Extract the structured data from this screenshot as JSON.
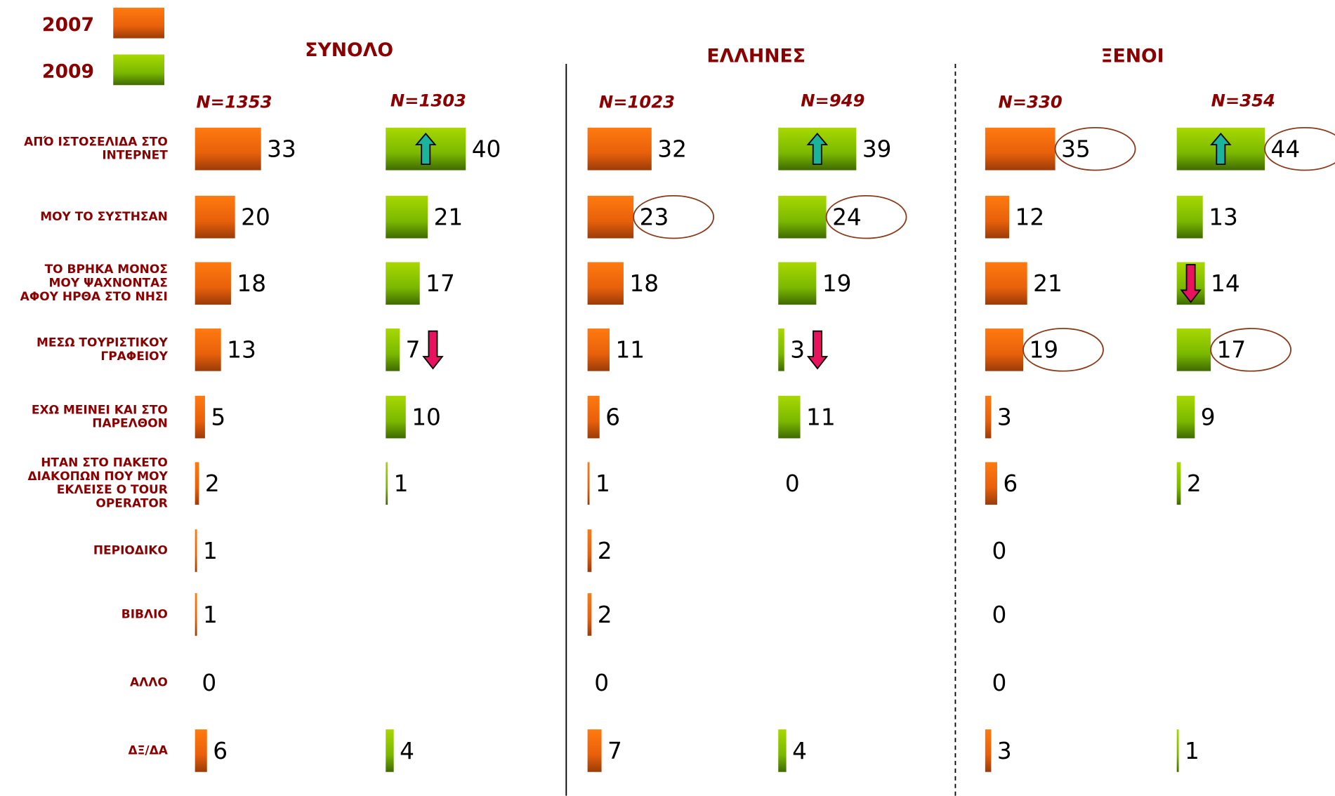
{
  "chart_data": {
    "type": "bar",
    "orientation": "horizontal",
    "legend": [
      {
        "name": "2007",
        "color": "#e8600a"
      },
      {
        "name": "2009",
        "color": "#7ab800"
      }
    ],
    "categories": [
      "ΑΠΌ ΙΣΤΟΣΕΛΙΔΑ ΣΤΟ ΙΝΤΕΡΝΕΤ",
      "ΜΟΥ ΤΟ ΣΥΣΤΗΣΑΝ",
      "ΤΟ ΒΡΗΚΑ ΜΟΝΟΣ ΜΟΥ ΨΑΧΝΟΝΤΑΣ ΑΦΟΥ ΗΡΘΑ ΣΤΟ ΝΗΣΙ",
      "ΜΕΣΩ ΤΟΥΡΙΣΤΙΚΟΥ ΓΡΑΦΕΙΟΥ",
      "ΕΧΩ ΜΕΙΝΕΙ ΚΑΙ ΣΤΟ ΠΑΡΕΛΘΟΝ",
      "ΗΤΑΝ ΣΤΟ ΠΑΚΕΤΟ ΔΙΑΚΟΠΩΝ ΠΟΥ ΜΟΥ ΕΚΛΕΙΣΕ Ο TOUR OPERATOR",
      "ΠΕΡΙΟΔΙΚΟ",
      "ΒΙΒΛΙΟ",
      "ΑΛΛΟ",
      "ΔΞ/ΔΑ"
    ],
    "panels": [
      {
        "title": "ΣΥΝΟΛΟ",
        "columns": [
          {
            "label": "N=1353",
            "series": 0,
            "values": [
              33,
              20,
              18,
              13,
              5,
              2,
              1,
              1,
              0,
              6
            ]
          },
          {
            "label": "N=1303",
            "series": 1,
            "values": [
              40,
              21,
              17,
              7,
              10,
              1,
              null,
              null,
              null,
              4
            ]
          }
        ]
      },
      {
        "title": "ΕΛΛΗΝΕΣ",
        "columns": [
          {
            "label": "N=1023",
            "series": 0,
            "values": [
              32,
              23,
              18,
              11,
              6,
              1,
              2,
              2,
              0,
              7
            ]
          },
          {
            "label": "N=949",
            "series": 1,
            "values": [
              39,
              24,
              19,
              3,
              11,
              0,
              null,
              null,
              null,
              4
            ]
          }
        ]
      },
      {
        "title": "ΞΕΝΟΙ",
        "columns": [
          {
            "label": "N=330",
            "series": 0,
            "values": [
              35,
              12,
              21,
              19,
              3,
              6,
              0,
              0,
              0,
              3
            ]
          },
          {
            "label": "N=354",
            "series": 1,
            "values": [
              44,
              13,
              14,
              17,
              9,
              2,
              null,
              null,
              null,
              1
            ]
          }
        ]
      }
    ]
  }
}
